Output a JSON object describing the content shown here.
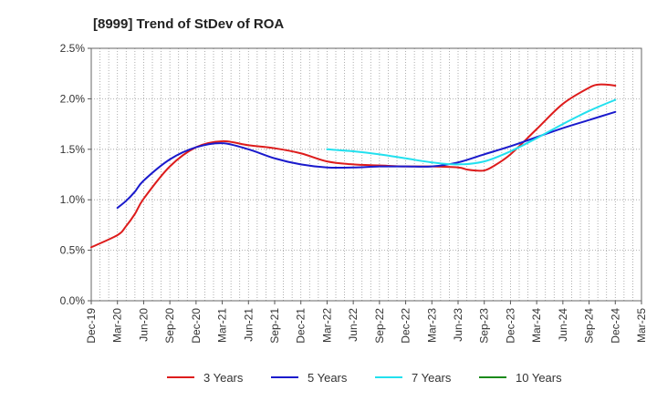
{
  "chart_data": {
    "type": "line",
    "title": "[8999]  Trend of StDev of ROA",
    "xlabel": "",
    "ylabel": "",
    "y_tick_labels": [
      "0.0%",
      "0.5%",
      "1.0%",
      "1.5%",
      "2.0%",
      "2.5%"
    ],
    "y_tick_values": [
      0,
      0.5,
      1.0,
      1.5,
      2.0,
      2.5
    ],
    "ylim": [
      0,
      2.5
    ],
    "x_tick_labels": [
      "Dec-19",
      "Mar-20",
      "Jun-20",
      "Sep-20",
      "Dec-20",
      "Mar-21",
      "Jun-21",
      "Sep-21",
      "Dec-21",
      "Mar-22",
      "Jun-22",
      "Sep-22",
      "Dec-22",
      "Mar-23",
      "Jun-23",
      "Sep-23",
      "Dec-23",
      "Mar-24",
      "Jun-24",
      "Sep-24",
      "Dec-24",
      "Mar-25"
    ],
    "xlim": [
      "Dec-19",
      "Mar-25"
    ],
    "grid": true,
    "legend_position": "bottom",
    "series": [
      {
        "name": "3 Years",
        "color": "#dd1c1c",
        "x": [
          "Dec-19",
          "Mar-20",
          "Apr-20",
          "May-20",
          "Jun-20",
          "Sep-20",
          "Dec-20",
          "Mar-21",
          "Jun-21",
          "Sep-21",
          "Dec-21",
          "Mar-22",
          "Jun-22",
          "Sep-22",
          "Dec-22",
          "Mar-23",
          "Jun-23",
          "Jul-23",
          "Aug-23",
          "Sep-23",
          "Oct-23",
          "Dec-23",
          "Mar-24",
          "Jun-24",
          "Sep-24",
          "Oct-24",
          "Nov-24",
          "Dec-24"
        ],
        "values": [
          0.53,
          0.65,
          0.74,
          0.86,
          1.01,
          1.33,
          1.52,
          1.58,
          1.54,
          1.51,
          1.46,
          1.38,
          1.35,
          1.34,
          1.33,
          1.33,
          1.32,
          1.3,
          1.29,
          1.29,
          1.33,
          1.45,
          1.7,
          1.95,
          2.11,
          2.14,
          2.14,
          2.13
        ]
      },
      {
        "name": "5 Years",
        "color": "#1a1acc",
        "x": [
          "Dec-20",
          "Mar-21",
          "Jun-21",
          "Sep-21",
          "Dec-21",
          "Mar-22",
          "Jun-22",
          "Sep-22",
          "Dec-22",
          "Mar-23",
          "Jun-23",
          "Sep-23",
          "Dec-23",
          "Mar-24",
          "Jun-24",
          "Sep-24",
          "Dec-24"
        ],
        "values": [
          1.52,
          1.56,
          1.5,
          1.41,
          1.35,
          1.32,
          1.32,
          1.33,
          1.33,
          1.33,
          1.37,
          1.45,
          1.53,
          1.62,
          1.71,
          1.79,
          1.87
        ],
        "x_extra_left": [
          "Mar-20",
          "Apr-20",
          "May-20",
          "Jun-20",
          "Sep-20"
        ],
        "values_extra_left": [
          0.92,
          0.99,
          1.08,
          1.19,
          1.4
        ]
      },
      {
        "name": "7 Years",
        "color": "#22e0ee",
        "x": [
          "Mar-22",
          "Jun-22",
          "Sep-22",
          "Dec-22",
          "Mar-23",
          "Jun-23",
          "Sep-23",
          "Dec-23",
          "Mar-24",
          "Jun-24",
          "Sep-24",
          "Dec-24"
        ],
        "values": [
          1.5,
          1.48,
          1.45,
          1.41,
          1.37,
          1.35,
          1.38,
          1.48,
          1.61,
          1.75,
          1.88,
          1.99
        ]
      },
      {
        "name": "10 Years",
        "color": "#1a8a1a",
        "x": [],
        "values": []
      }
    ]
  }
}
